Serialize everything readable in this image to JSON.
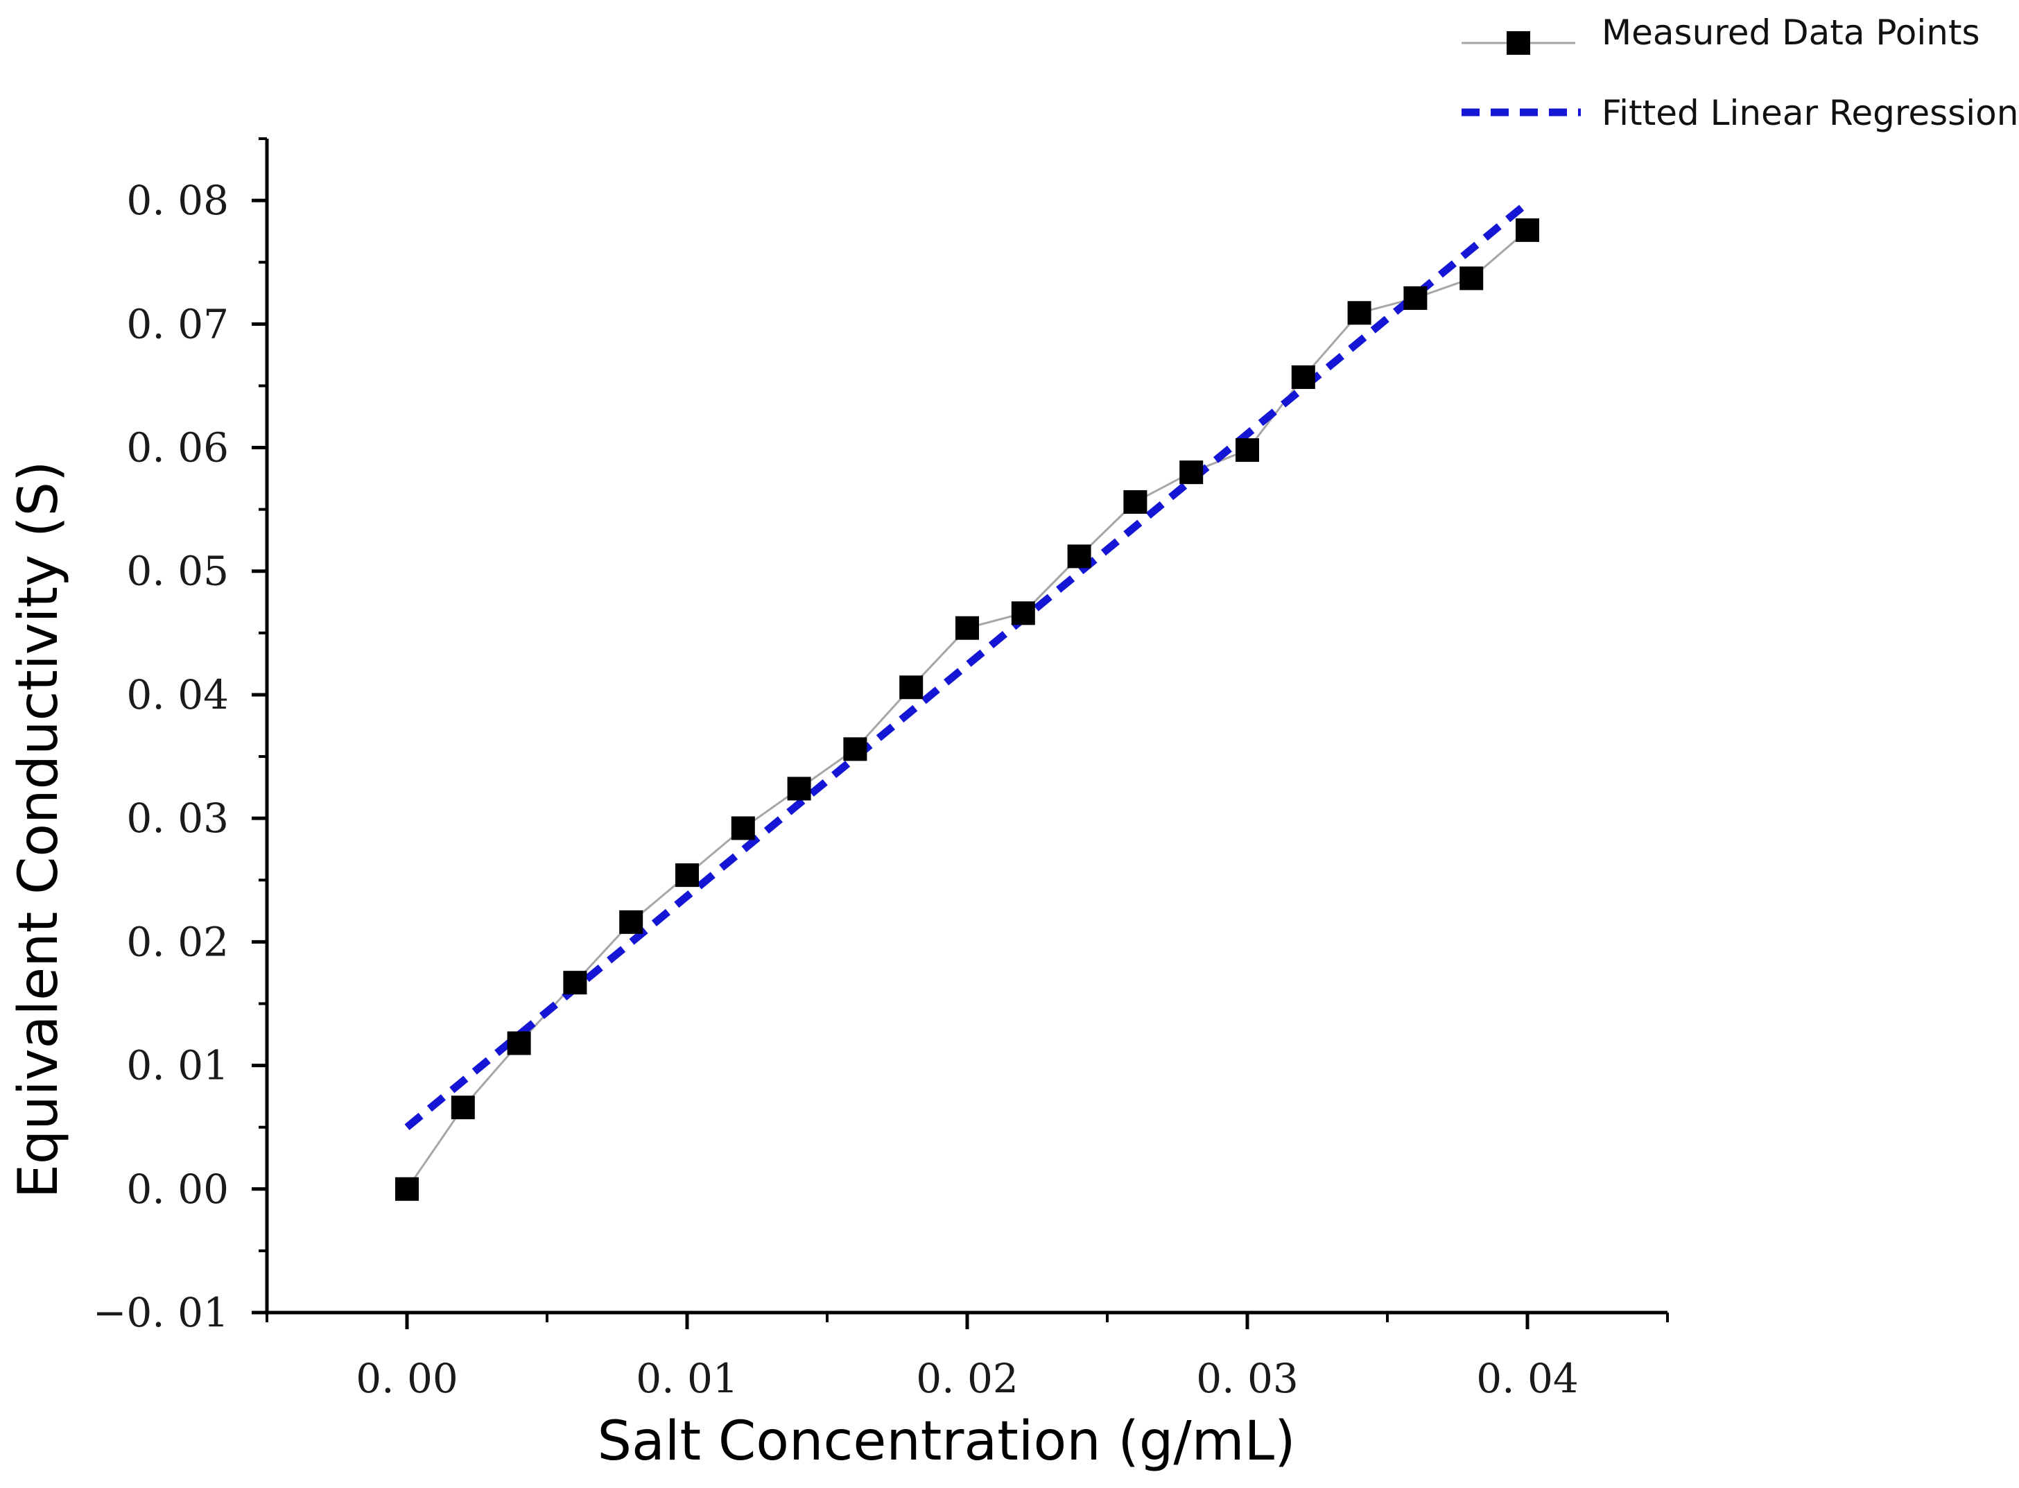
{
  "chart_data": {
    "type": "scatter",
    "title": "",
    "xlabel": "Salt Concentration (g/mL)",
    "ylabel": "Equivalent Conductivity (S)",
    "xlim": [
      -0.005,
      0.045
    ],
    "ylim": [
      -0.01,
      0.085
    ],
    "x_ticks": [
      0.0,
      0.01,
      0.02,
      0.03,
      0.04
    ],
    "x_tick_labels": [
      "0. 00",
      "0. 01",
      "0. 02",
      "0. 03",
      "0. 04"
    ],
    "y_ticks": [
      -0.01,
      0.0,
      0.01,
      0.02,
      0.03,
      0.04,
      0.05,
      0.06,
      0.07,
      0.08
    ],
    "y_tick_labels": [
      "−0. 01",
      "0. 00",
      "0. 01",
      "0. 02",
      "0. 03",
      "0. 04",
      "0. 05",
      "0. 06",
      "0. 07",
      "0. 08"
    ],
    "grid": false,
    "legend_position": "top-right",
    "series": [
      {
        "name": "Measured Data Points",
        "style": "line-with-square-markers",
        "line_color": "#a6a6a6",
        "marker_color": "#000000",
        "x": [
          0.0,
          0.002,
          0.004,
          0.006,
          0.008,
          0.01,
          0.012,
          0.014,
          0.016,
          0.018,
          0.02,
          0.022,
          0.024,
          0.026,
          0.028,
          0.03,
          0.032,
          0.034,
          0.036,
          0.038,
          0.04
        ],
        "y": [
          0.0,
          0.0066,
          0.0118,
          0.0167,
          0.0216,
          0.0254,
          0.0292,
          0.0324,
          0.0356,
          0.0406,
          0.0454,
          0.0466,
          0.0512,
          0.0556,
          0.058,
          0.0598,
          0.0657,
          0.0709,
          0.0721,
          0.0737,
          0.0776
        ]
      },
      {
        "name": "Fitted Linear Regression",
        "style": "dashed-line",
        "color": "#1515d6",
        "x": [
          0.0,
          0.04
        ],
        "y": [
          0.005,
          0.0798
        ]
      }
    ]
  }
}
